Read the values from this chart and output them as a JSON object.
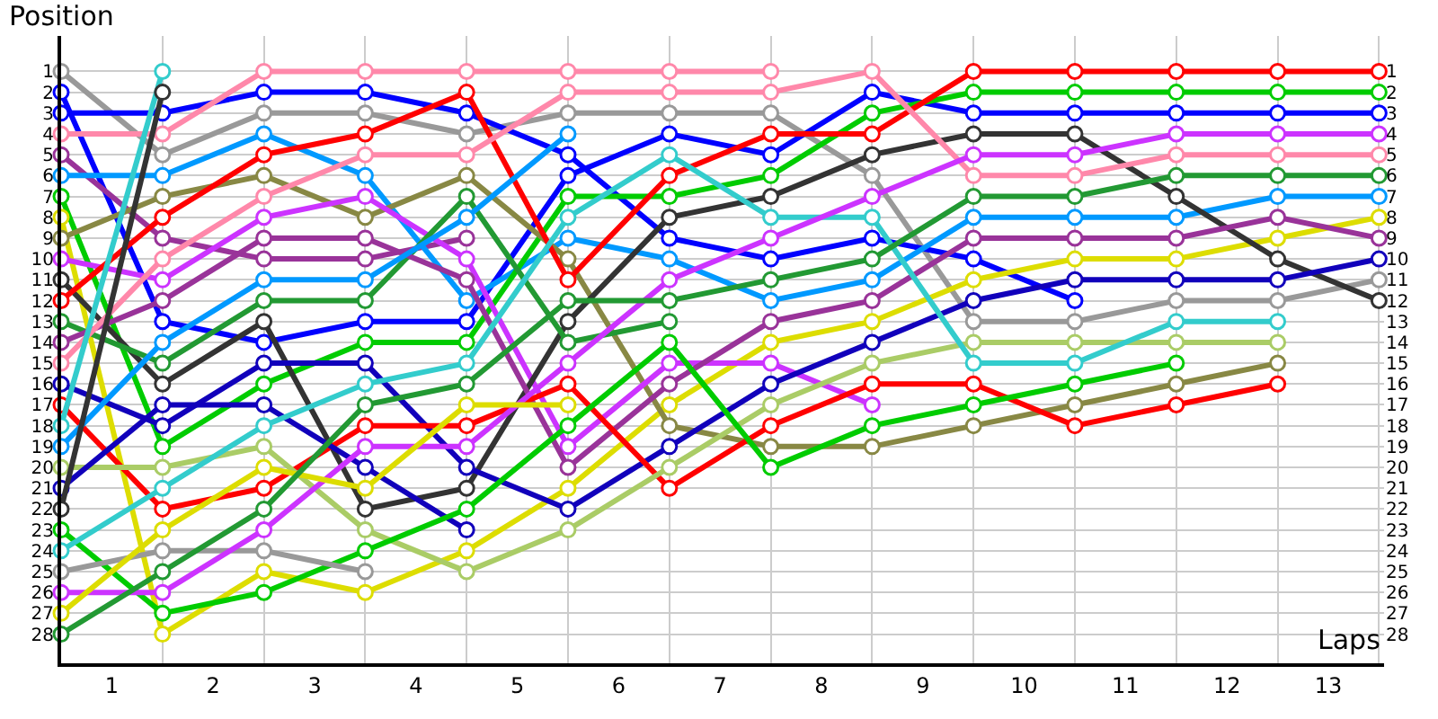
{
  "chart_data": {
    "type": "line",
    "xlabel": "Laps",
    "ylabel": "Position",
    "x": [
      0,
      1,
      2,
      3,
      4,
      5,
      6,
      7,
      8,
      9,
      10,
      11,
      12,
      13
    ],
    "xlim": [
      0,
      13.05
    ],
    "xticks": [
      {
        "value": 0,
        "label": null
      },
      {
        "value": 0.5,
        "label": "1"
      },
      {
        "value": 1,
        "label": null
      },
      {
        "value": 1.5,
        "label": "2"
      },
      {
        "value": 2,
        "label": null
      },
      {
        "value": 2.5,
        "label": "3"
      },
      {
        "value": 3,
        "label": null
      },
      {
        "value": 3.5,
        "label": "4"
      },
      {
        "value": 4,
        "label": null
      },
      {
        "value": 4.5,
        "label": "5"
      },
      {
        "value": 5,
        "label": null
      },
      {
        "value": 5.5,
        "label": "6"
      },
      {
        "value": 6,
        "label": null
      },
      {
        "value": 6.5,
        "label": "7"
      },
      {
        "value": 7,
        "label": null
      },
      {
        "value": 7.5,
        "label": "8"
      },
      {
        "value": 8,
        "label": null
      },
      {
        "value": 8.5,
        "label": "9"
      },
      {
        "value": 9,
        "label": null
      },
      {
        "value": 9.5,
        "label": "10"
      },
      {
        "value": 10,
        "label": null
      },
      {
        "value": 10.5,
        "label": "11"
      },
      {
        "value": 11,
        "label": null
      },
      {
        "value": 11.5,
        "label": "12"
      },
      {
        "value": 12,
        "label": null
      },
      {
        "value": 12.5,
        "label": "13"
      },
      {
        "value": 13,
        "label": null
      }
    ],
    "ylim": [
      29.4,
      -0.7
    ],
    "yticks": [
      1,
      2,
      3,
      4,
      5,
      6,
      7,
      8,
      9,
      10,
      11,
      12,
      13,
      14,
      15,
      16,
      17,
      18,
      19,
      20,
      21,
      22,
      23,
      24,
      25,
      26,
      27,
      28
    ],
    "y2lim": [
      29.4,
      -0.7
    ],
    "y2ticks": [
      1,
      2,
      3,
      4,
      5,
      6,
      7,
      8,
      9,
      10,
      11,
      12,
      13,
      14,
      15,
      16,
      17,
      18,
      19,
      20,
      21,
      22,
      23,
      24,
      25,
      26,
      27,
      28
    ],
    "grid": true,
    "marker": "circle",
    "line_style": "solid",
    "series": [
      {
        "color": "#999999",
        "values": [
          1,
          5,
          3,
          3,
          4,
          3,
          3,
          3,
          6,
          13,
          13,
          12,
          12,
          11
        ]
      },
      {
        "color": "#0000ff",
        "values": [
          2,
          13,
          14,
          13,
          13,
          6,
          4,
          5,
          2,
          3,
          3,
          3,
          3,
          3
        ]
      },
      {
        "color": "#0000ff",
        "values": [
          3,
          3,
          2,
          2,
          3,
          5,
          9,
          10,
          9,
          10,
          12,
          null,
          null,
          null
        ]
      },
      {
        "color": "#ff88aa",
        "values": [
          4,
          4,
          1,
          1,
          1,
          1,
          1,
          1,
          null,
          null,
          null,
          null,
          null,
          null
        ]
      },
      {
        "color": "#993399",
        "values": [
          5,
          9,
          10,
          10,
          9,
          null,
          null,
          null,
          null,
          null,
          null,
          null,
          null,
          null
        ]
      },
      {
        "color": "#0099ff",
        "values": [
          6,
          6,
          4,
          6,
          12,
          9,
          10,
          12,
          11,
          8,
          8,
          8,
          7,
          7
        ]
      },
      {
        "color": "#00cc00",
        "values": [
          7,
          19,
          16,
          14,
          14,
          7,
          7,
          6,
          3,
          2,
          2,
          2,
          2,
          2
        ]
      },
      {
        "color": "#dddd00",
        "values": [
          8,
          28,
          25,
          26,
          24,
          21,
          17,
          14,
          13,
          11,
          10,
          10,
          9,
          8
        ]
      },
      {
        "color": "#888844",
        "values": [
          9,
          7,
          6,
          8,
          6,
          10,
          18,
          19,
          19,
          18,
          17,
          16,
          15,
          null
        ]
      },
      {
        "color": "#cc33ff",
        "values": [
          10,
          11,
          8,
          7,
          10,
          19,
          15,
          15,
          17,
          null,
          null,
          null,
          null,
          null
        ]
      },
      {
        "color": "#333333",
        "values": [
          11,
          16,
          13,
          22,
          21,
          13,
          8,
          7,
          5,
          4,
          4,
          7,
          10,
          12
        ]
      },
      {
        "color": "#ff0000",
        "values": [
          12,
          8,
          5,
          4,
          2,
          11,
          6,
          4,
          4,
          1,
          1,
          1,
          1,
          1
        ]
      },
      {
        "color": "#229933",
        "values": [
          13,
          15,
          12,
          12,
          7,
          14,
          13,
          null,
          null,
          null,
          null,
          null,
          null,
          null
        ]
      },
      {
        "color": "#993399",
        "values": [
          14,
          12,
          9,
          9,
          11,
          20,
          16,
          13,
          12,
          9,
          9,
          9,
          8,
          9
        ]
      },
      {
        "color": "#ff88aa",
        "values": [
          15,
          10,
          7,
          5,
          5,
          2,
          2,
          2,
          1,
          6,
          6,
          5,
          5,
          5
        ]
      },
      {
        "color": "#1100bb",
        "values": [
          16,
          18,
          15,
          15,
          20,
          22,
          19,
          16,
          14,
          12,
          11,
          11,
          11,
          10
        ]
      },
      {
        "color": "#ff0000",
        "values": [
          17,
          22,
          21,
          18,
          18,
          16,
          21,
          18,
          16,
          16,
          18,
          17,
          16,
          null
        ]
      },
      {
        "color": "#33cccc",
        "values": [
          18,
          1,
          null,
          null,
          null,
          null,
          null,
          null,
          null,
          null,
          null,
          null,
          null,
          null
        ]
      },
      {
        "color": "#0099ff",
        "values": [
          19,
          14,
          11,
          11,
          8,
          4,
          null,
          null,
          null,
          null,
          null,
          null,
          null,
          null
        ]
      },
      {
        "color": "#aacc66",
        "values": [
          20,
          20,
          19,
          23,
          25,
          23,
          20,
          17,
          15,
          14,
          14,
          14,
          14,
          null
        ]
      },
      {
        "color": "#1100bb",
        "values": [
          21,
          17,
          17,
          20,
          23,
          null,
          null,
          null,
          null,
          null,
          null,
          null,
          null,
          null
        ]
      },
      {
        "color": "#333333",
        "values": [
          22,
          2,
          null,
          null,
          null,
          null,
          null,
          null,
          null,
          null,
          null,
          null,
          null,
          null
        ]
      },
      {
        "color": "#00cc00",
        "values": [
          23,
          27,
          26,
          24,
          22,
          18,
          14,
          20,
          18,
          17,
          16,
          15,
          null,
          null
        ]
      },
      {
        "color": "#33cccc",
        "values": [
          24,
          21,
          18,
          16,
          15,
          8,
          5,
          8,
          8,
          15,
          15,
          13,
          13,
          null
        ]
      },
      {
        "color": "#999999",
        "values": [
          25,
          24,
          24,
          25,
          null,
          null,
          null,
          null,
          null,
          null,
          null,
          null,
          null,
          null
        ]
      },
      {
        "color": "#cc33ff",
        "values": [
          26,
          26,
          23,
          19,
          19,
          15,
          11,
          9,
          7,
          5,
          5,
          4,
          4,
          4
        ]
      },
      {
        "color": "#dddd00",
        "values": [
          27,
          23,
          20,
          21,
          17,
          17,
          null,
          null,
          null,
          null,
          null,
          null,
          null,
          null
        ]
      },
      {
        "color": "#229933",
        "values": [
          28,
          25,
          22,
          17,
          16,
          12,
          12,
          11,
          10,
          7,
          7,
          6,
          6,
          6
        ]
      }
    ]
  }
}
